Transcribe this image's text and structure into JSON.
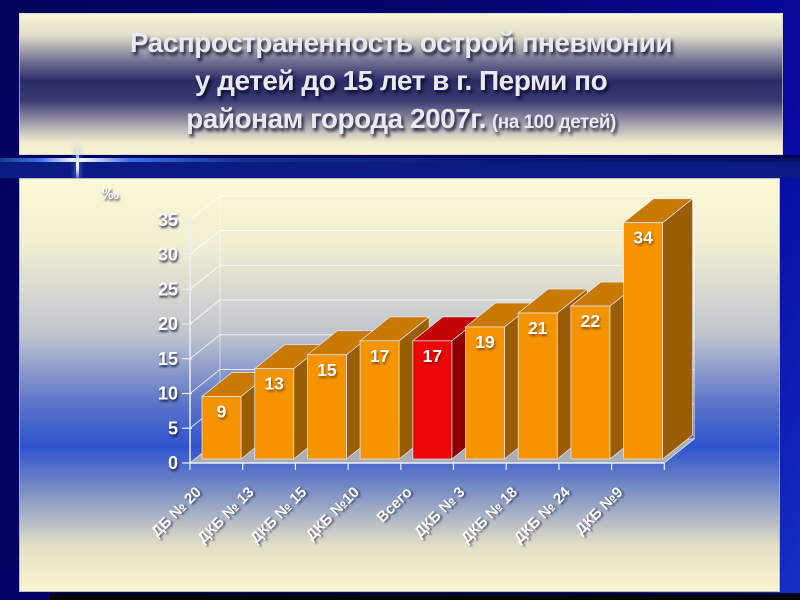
{
  "slide": {
    "title_line1": "Распространенность острой пневмонии",
    "title_line2": "у детей до 15 лет в г. Перми по",
    "title_line3": "районам города 2007г.",
    "title_note": "(на 100 детей)"
  },
  "chart_data": {
    "type": "bar",
    "title": "Распространенность острой пневмонии у детей до 15 лет в г. Перми по районам города 2007г. (на 100 детей)",
    "xlabel": "",
    "ylabel": "‰",
    "categories": [
      "ДБ № 20",
      "ДКБ № 13",
      "ДКБ № 15",
      "ДКБ №10",
      "Всего",
      "ДКБ № 3",
      "ДКБ № 18",
      "ДКБ № 24",
      "ДКБ №9"
    ],
    "values": [
      9,
      13,
      15,
      17,
      17,
      19,
      21,
      22,
      34
    ],
    "highlight_index": 4,
    "highlight_category": "Всего",
    "y_ticks": [
      0,
      5,
      10,
      15,
      20,
      25,
      30,
      35
    ],
    "ylim": [
      0,
      35
    ],
    "grid": true,
    "legend": false,
    "bar_color": "#F59300",
    "bar_top_color": "#C97802",
    "bar_side_color": "#9A5D03",
    "highlight_color": "#EE0606",
    "highlight_top_color": "#C20404",
    "highlight_side_color": "#8C0202"
  }
}
